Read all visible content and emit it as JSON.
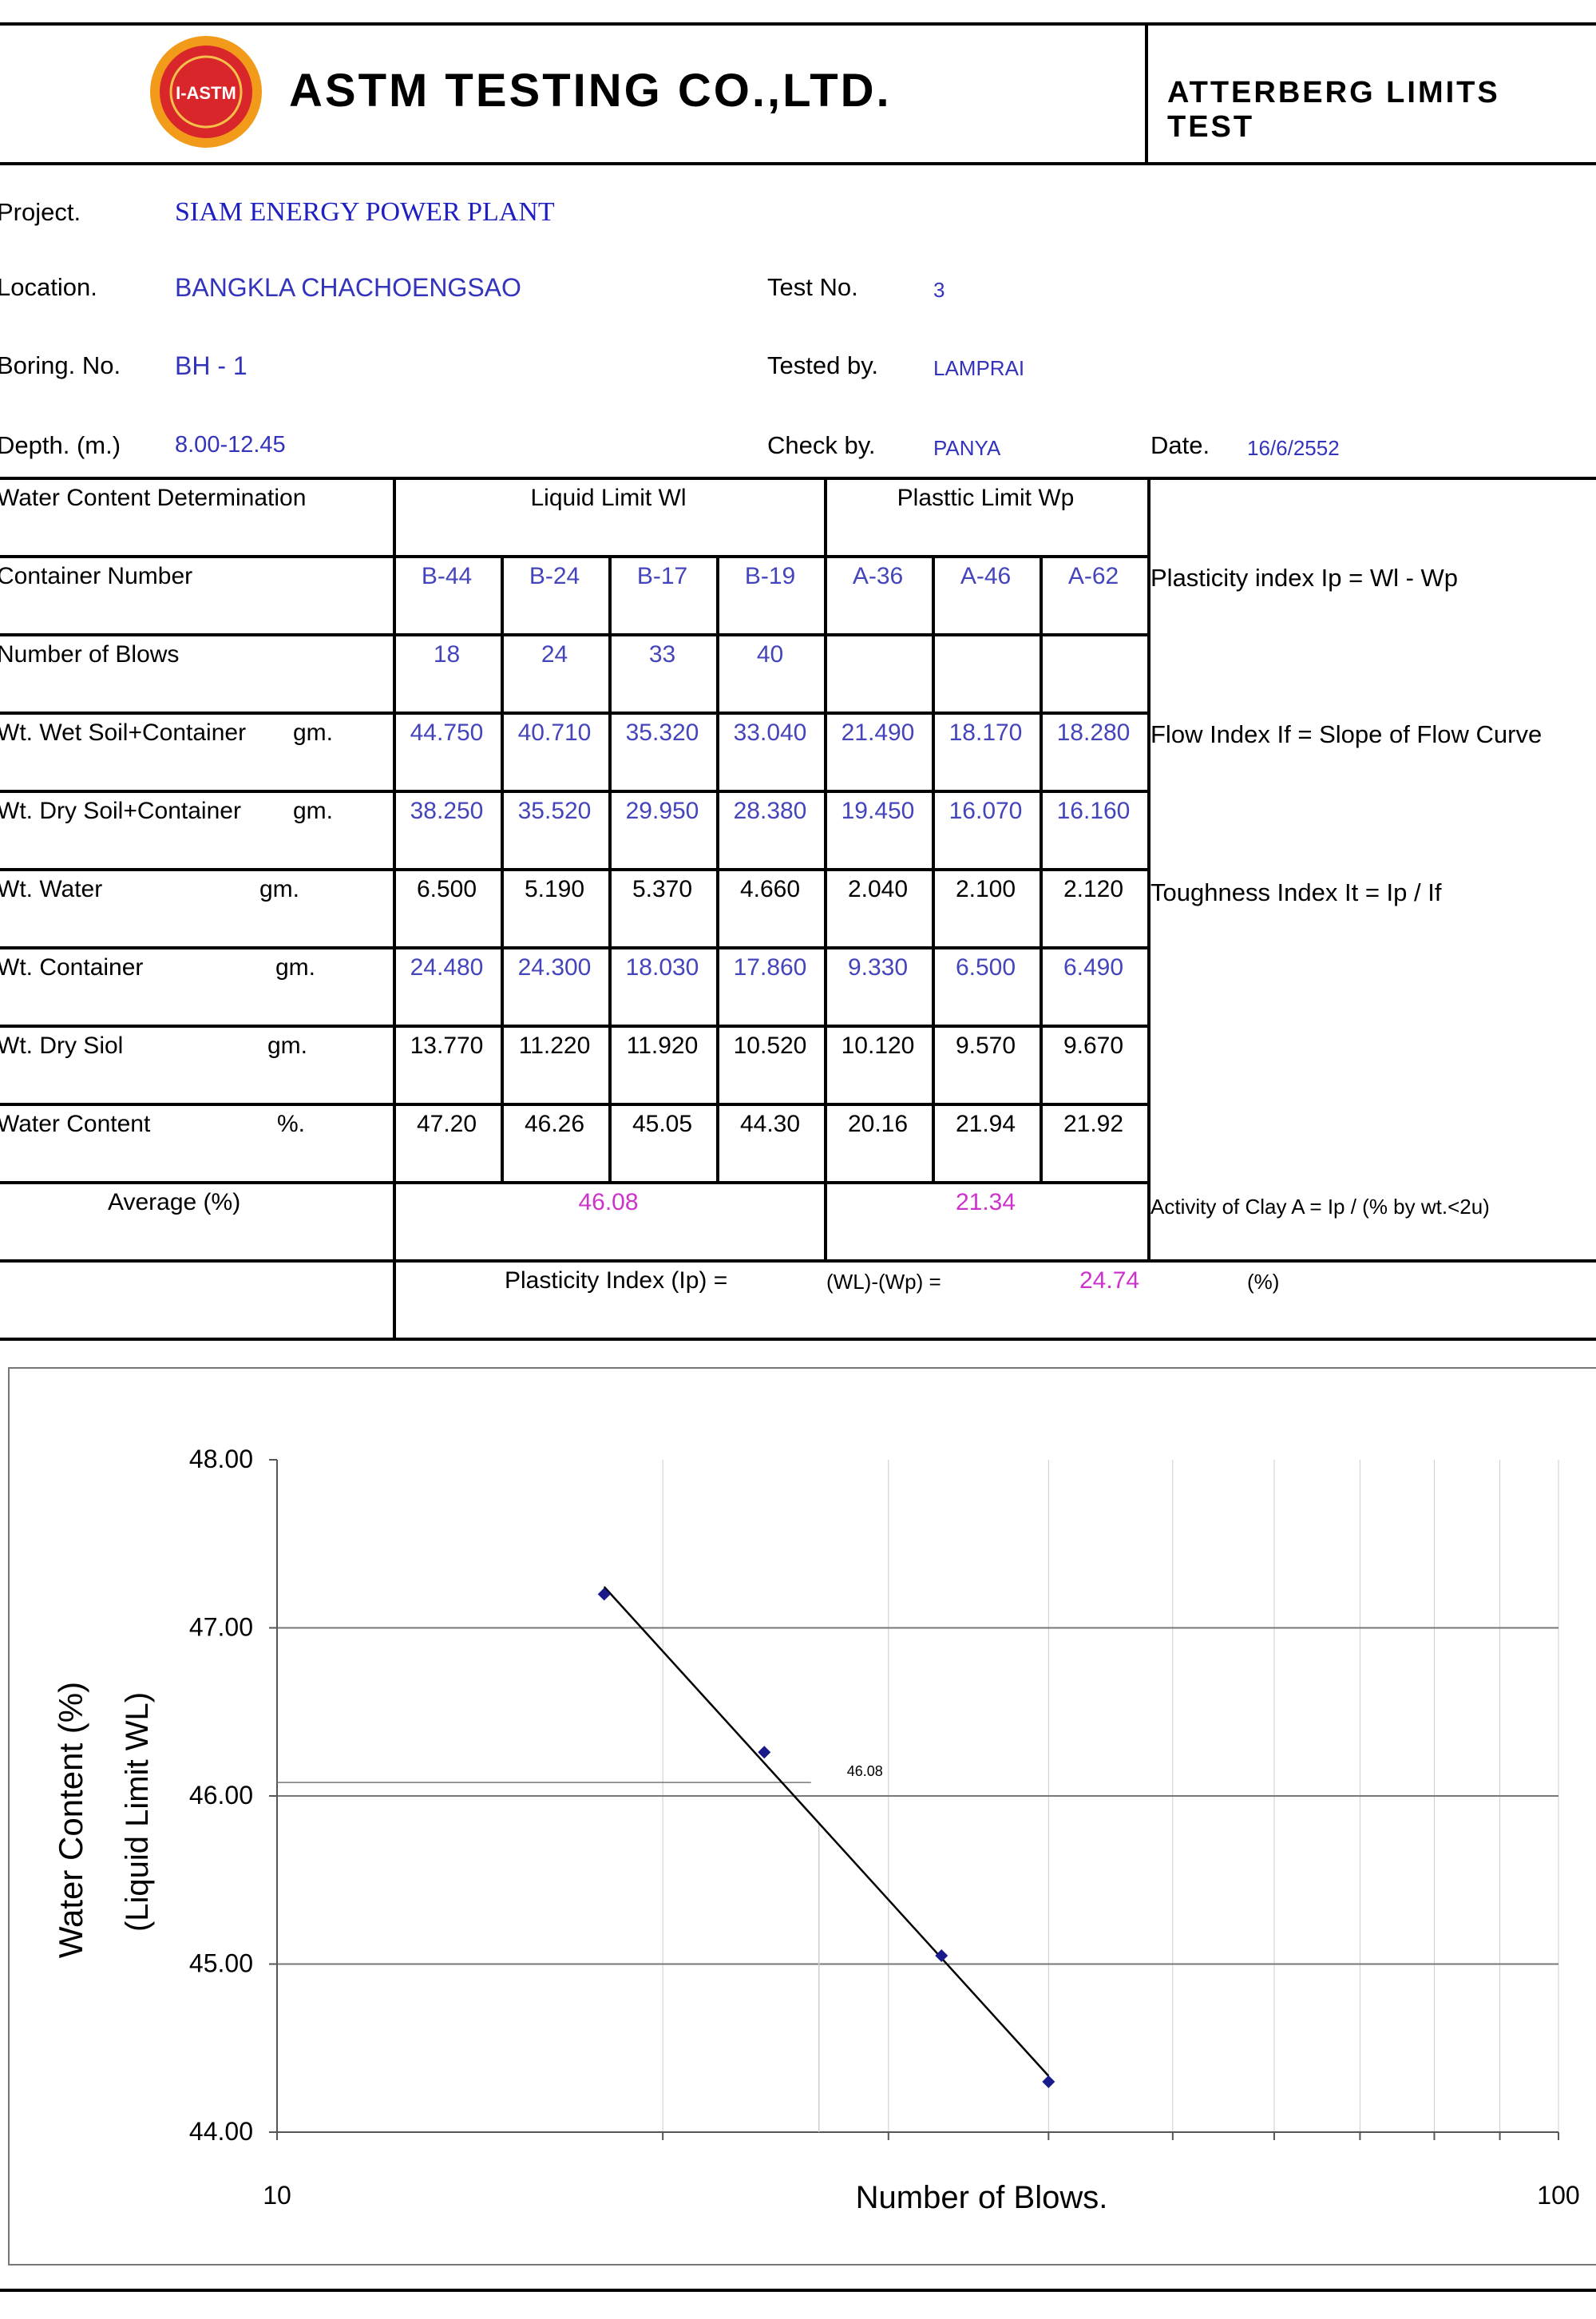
{
  "header": {
    "company": "ASTM TESTING CO.,LTD.",
    "test_title": "ATTERBERG  LIMITS  TEST",
    "logo_text": "I-ASTM"
  },
  "info": {
    "project_label": "Project.",
    "project": "SIAM ENERGY POWER PLANT",
    "location_label": "Location.",
    "location": "BANGKLA CHACHOENGSAO",
    "boring_label": "Boring. No.",
    "boring": "BH - 1",
    "depth_label": "Depth. (m.)",
    "depth": "8.00-12.45",
    "testno_label": "Test No.",
    "testno": "3",
    "testedby_label": "Tested by.",
    "testedby": "LAMPRAI",
    "checkby_label": "Check by.",
    "checkby": "PANYA",
    "date_label": "Date.",
    "date": "16/6/2552"
  },
  "table": {
    "heading": "Water Content Determination",
    "ll_heading": "Liquid    Limit   Wl",
    "pl_heading": "Plasttic  Limit  Wp",
    "rows": [
      {
        "label": "Container  Number",
        "unit": "",
        "cells": [
          "B-44",
          "B-24",
          "B-17",
          "B-19",
          "A-36",
          "A-46",
          "A-62"
        ],
        "style": "blue"
      },
      {
        "label": "Number  of  Blows",
        "unit": "",
        "cells": [
          "18",
          "24",
          "33",
          "40",
          "",
          "",
          ""
        ],
        "style": "blue"
      },
      {
        "label": "Wt. Wet Soil+Container",
        "unit": "gm.",
        "cells": [
          "44.750",
          "40.710",
          "35.320",
          "33.040",
          "21.490",
          "18.170",
          "18.280"
        ],
        "style": "blue"
      },
      {
        "label": "Wt. Dry Soil+Container",
        "unit": "gm.",
        "cells": [
          "38.250",
          "35.520",
          "29.950",
          "28.380",
          "19.450",
          "16.070",
          "16.160"
        ],
        "style": "blue"
      },
      {
        "label": "Wt. Water",
        "unit": "gm.",
        "cells": [
          "6.500",
          "5.190",
          "5.370",
          "4.660",
          "2.040",
          "2.100",
          "2.120"
        ],
        "style": "black"
      },
      {
        "label": "Wt. Container",
        "unit": "gm.",
        "cells": [
          "24.480",
          "24.300",
          "18.030",
          "17.860",
          "9.330",
          "6.500",
          "6.490"
        ],
        "style": "blue"
      },
      {
        "label": "Wt. Dry Siol",
        "unit": "gm.",
        "cells": [
          "13.770",
          "11.220",
          "11.920",
          "10.520",
          "10.120",
          "9.570",
          "9.670"
        ],
        "style": "black"
      },
      {
        "label": "Water Content",
        "unit": "%.",
        "cells": [
          "47.20",
          "46.26",
          "45.05",
          "44.30",
          "20.16",
          "21.94",
          "21.92"
        ],
        "style": "black"
      }
    ],
    "average_label": "Average  (%)",
    "ll_average": "46.08",
    "pl_average": "21.34",
    "pi_label": "Plasticity  Index  (Ip)   =",
    "pi_formula": "(WL)-(Wp)  =",
    "pi_value": "24.74",
    "pi_unit": "(%)"
  },
  "notes": {
    "plasticity_index": "Plasticity index Ip  =  Wl - Wp",
    "flow_index": "Flow Index If = Slope of Flow Curve",
    "toughness_index": "Toughness Index It = Ip / If",
    "activity": "Activity of Clay A =  Ip / (% by wt.<2u)"
  },
  "chart_data": {
    "type": "scatter",
    "x_scale": "log",
    "xlim": [
      10,
      100
    ],
    "ylim": [
      44.0,
      48.0
    ],
    "xlabel": "Number   of   Blows.",
    "ylabel": "Water  Content   (%)",
    "ylabel2": "(Liquid Limit WL)",
    "x_tick_labels": [
      "10",
      "100"
    ],
    "y_tick_labels": [
      "44.00",
      "45.00",
      "46.00",
      "47.00",
      "48.00"
    ],
    "y_ticks": [
      44,
      45,
      46,
      47,
      48
    ],
    "points": [
      {
        "x": 18,
        "y": 47.2
      },
      {
        "x": 24,
        "y": 46.26
      },
      {
        "x": 33,
        "y": 45.05
      },
      {
        "x": 40,
        "y": 44.3
      }
    ],
    "trendline": true,
    "annotation": {
      "text": "46.08",
      "x": 25,
      "y": 46.08
    },
    "point_color": "#1a1a8c"
  }
}
